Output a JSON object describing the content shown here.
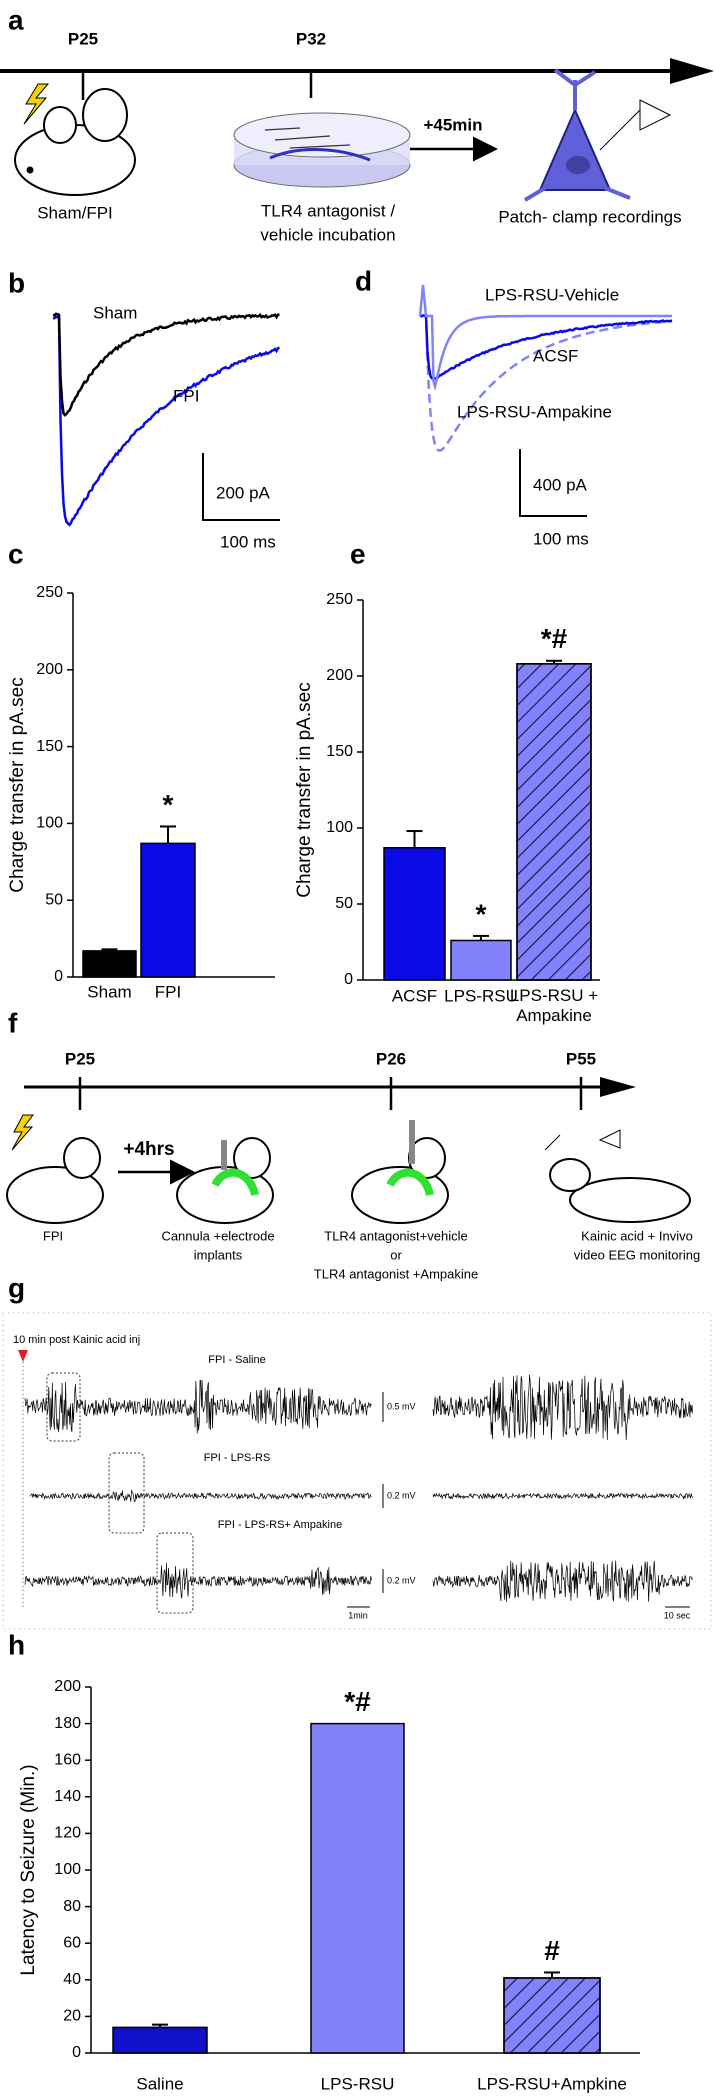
{
  "panel_a": {
    "label": "a",
    "p25": "P25",
    "p32": "P32",
    "sham_fpi": "Sham/FPI",
    "incubation": [
      "TLR4 antagonist /",
      "vehicle incubation"
    ],
    "delay": "+45min",
    "patch": "Patch- clamp recordings"
  },
  "panel_b": {
    "label": "b",
    "sham": "Sham",
    "fpi": "FPI",
    "scale_y": "200 pA",
    "scale_x": "100 ms"
  },
  "panel_d": {
    "label": "d",
    "vehicle": "LPS-RSU-Vehicle",
    "acsf": "ACSF",
    "ampakine": "LPS-RSU-Ampakine",
    "scale_y": "400 pA",
    "scale_x": "100 ms"
  },
  "panel_f": {
    "label": "f",
    "p25": "P25",
    "p26": "P26",
    "p55": "P55",
    "delay": "+4hrs",
    "fpi": "FPI",
    "cannula": [
      "Cannula +electrode",
      "implants"
    ],
    "treatment": [
      "TLR4 antagonist+vehicle",
      "or",
      "TLR4 antagonist +Ampakine"
    ],
    "monitoring": [
      "Kainic acid + Invivo",
      "video EEG monitoring"
    ]
  },
  "panel_g": {
    "label": "g",
    "onset": "10 min post Kainic acid inj",
    "traces": [
      "FPI - Saline",
      "FPI - LPS-RS",
      "FPI - LPS-RS+ Ampakine"
    ],
    "scales": [
      "0.5 mV",
      "0.2 mV",
      "0.2 mV"
    ],
    "time_left": "1min",
    "time_right": "10 sec"
  },
  "chart_data": [
    {
      "type": "bar",
      "panel_label": "c",
      "ylabel": "Charge transfer in pA.sec",
      "categories": [
        "Sham",
        "FPI"
      ],
      "values": [
        17,
        87
      ],
      "errors": [
        1,
        11
      ],
      "colors": [
        "#000000",
        "#0a0ae6"
      ],
      "hatch": [
        false,
        false
      ],
      "significance": [
        null,
        "*"
      ],
      "ylim": [
        0,
        250
      ],
      "yticks": [
        0,
        50,
        100,
        150,
        200,
        250
      ]
    },
    {
      "type": "bar",
      "panel_label": "e",
      "ylabel": "Charge transfer in pA.sec",
      "categories": [
        "ACSF",
        "LPS-RSU",
        "LPS-RSU +\nAmpakine"
      ],
      "values": [
        87,
        26,
        208
      ],
      "errors": [
        11,
        3,
        2
      ],
      "colors": [
        "#0a0ae6",
        "#8282fa",
        "#8282fa"
      ],
      "hatch": [
        false,
        false,
        true
      ],
      "significance": [
        null,
        "*",
        "*#"
      ],
      "ylim": [
        0,
        250
      ],
      "yticks": [
        0,
        50,
        100,
        150,
        200,
        250
      ]
    },
    {
      "type": "bar",
      "panel_label": "h",
      "ylabel": "Latency to Seizure (Min.)",
      "categories": [
        "Saline",
        "LPS-RSU",
        "LPS-RSU+Ampkine"
      ],
      "values": [
        14,
        180,
        41
      ],
      "errors": [
        1.5,
        null,
        3
      ],
      "colors": [
        "#1010c8",
        "#8282fa",
        "#8282fa"
      ],
      "hatch": [
        false,
        false,
        true
      ],
      "significance": [
        null,
        "*#",
        "#"
      ],
      "ylim": [
        0,
        200
      ],
      "yticks": [
        0,
        20,
        40,
        60,
        80,
        100,
        120,
        140,
        160,
        180,
        200
      ]
    }
  ]
}
